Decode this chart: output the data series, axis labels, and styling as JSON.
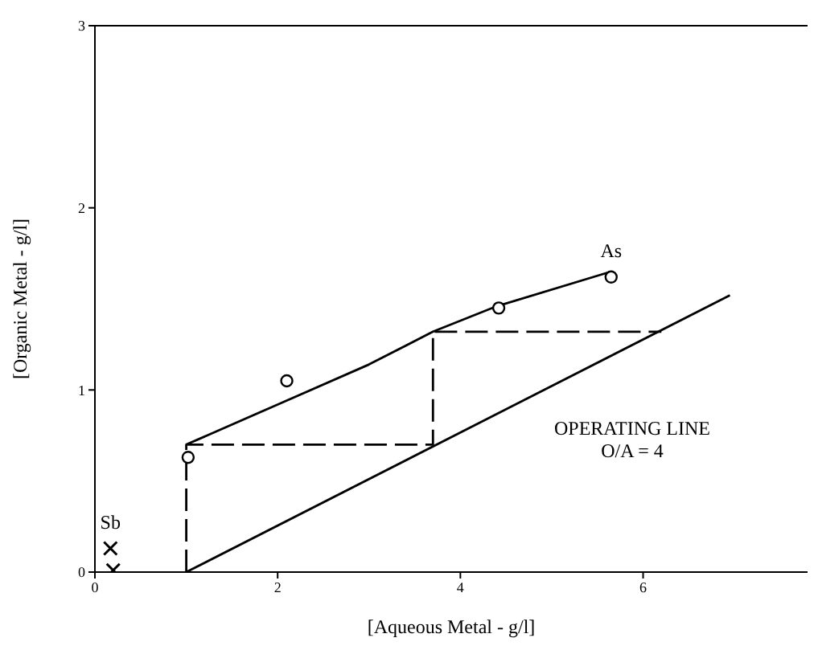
{
  "chart_data": {
    "type": "scatter",
    "xlabel": "[Aqueous Metal - g/l]",
    "ylabel": "[Organic Metal - g/l]",
    "xlim": [
      0,
      7.8
    ],
    "ylim": [
      0,
      3
    ],
    "xticks": [
      0,
      2,
      4,
      6
    ],
    "yticks": [
      0,
      1,
      2,
      3
    ],
    "grid": false,
    "legend": false,
    "annotations": [
      "OPERATING LINE",
      "O/A = 4"
    ],
    "series": [
      {
        "type": "line",
        "x": [
          1,
          2,
          3,
          3.7,
          4.4,
          5.65
        ],
        "values": [
          0.7,
          0.92,
          1.14,
          1.32,
          1.46,
          1.65
        ],
        "color": "#000000",
        "marker": "none",
        "line_style": "solid"
      },
      {
        "type": "line",
        "x": [
          1,
          6.95
        ],
        "values": [
          0,
          1.52
        ],
        "color": "#000000",
        "marker": "none",
        "line_style": "solid"
      },
      {
        "type": "line",
        "x": [
          1,
          1,
          3.7,
          3.7,
          6.2
        ],
        "values": [
          0,
          0.7,
          0.7,
          1.32,
          1.32
        ],
        "color": "#000000",
        "marker": "none",
        "line_style": "dashed"
      },
      {
        "name": "As",
        "x": [
          1.02,
          2.1,
          4.42,
          5.65
        ],
        "values": [
          0.63,
          1.05,
          1.45,
          1.62
        ],
        "color": "#000000",
        "marker": "circle"
      },
      {
        "name": "Sb",
        "x": [
          0.17,
          0.2
        ],
        "values": [
          0.13,
          0.01
        ],
        "color": "#000000",
        "marker": "cross"
      }
    ]
  }
}
